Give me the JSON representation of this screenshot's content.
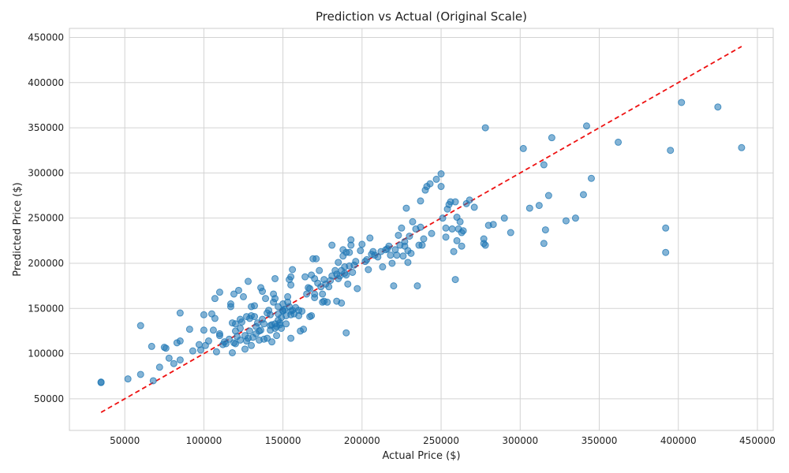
{
  "chart_data": {
    "type": "scatter",
    "title": "Prediction vs Actual (Original Scale)",
    "xlabel": "Actual Price ($)",
    "ylabel": "Predicted Price ($)",
    "xlim": [
      15000,
      460000
    ],
    "ylim": [
      15000,
      460000
    ],
    "xticks": [
      50000,
      100000,
      150000,
      200000,
      250000,
      300000,
      350000,
      400000,
      450000
    ],
    "yticks": [
      50000,
      100000,
      150000,
      200000,
      250000,
      300000,
      350000,
      400000,
      450000
    ],
    "grid": true,
    "point_color": "#1f77b4",
    "reference_line": {
      "x": [
        35000,
        440000
      ],
      "y": [
        35000,
        440000
      ],
      "color": "#ee1111",
      "style": "dashed"
    },
    "points": [
      [
        35000,
        68000
      ],
      [
        35000,
        68500
      ],
      [
        52000,
        72000
      ],
      [
        60000,
        77000
      ],
      [
        60000,
        131000
      ],
      [
        67000,
        108000
      ],
      [
        68000,
        70000
      ],
      [
        72000,
        85000
      ],
      [
        75000,
        107000
      ],
      [
        76000,
        106000
      ],
      [
        78000,
        95000
      ],
      [
        81000,
        89000
      ],
      [
        83000,
        112000
      ],
      [
        85000,
        145000
      ],
      [
        85000,
        114000
      ],
      [
        85000,
        93000
      ],
      [
        91000,
        127000
      ],
      [
        93000,
        103000
      ],
      [
        97000,
        110000
      ],
      [
        98000,
        104000
      ],
      [
        100000,
        143000
      ],
      [
        100000,
        126000
      ],
      [
        101000,
        109000
      ],
      [
        103000,
        114000
      ],
      [
        105000,
        144000
      ],
      [
        106000,
        126000
      ],
      [
        107000,
        161000
      ],
      [
        107000,
        139000
      ],
      [
        108000,
        102000
      ],
      [
        110000,
        168000
      ],
      [
        110000,
        120000
      ],
      [
        110000,
        122000
      ],
      [
        112000,
        110000
      ],
      [
        113000,
        113000
      ],
      [
        114000,
        111000
      ],
      [
        116000,
        116000
      ],
      [
        117000,
        152000
      ],
      [
        117000,
        155000
      ],
      [
        118000,
        134000
      ],
      [
        118000,
        101000
      ],
      [
        119000,
        166000
      ],
      [
        119000,
        112000
      ],
      [
        120000,
        111000
      ],
      [
        120000,
        125000
      ],
      [
        120000,
        133000
      ],
      [
        121000,
        119000
      ],
      [
        122000,
        170000
      ],
      [
        123000,
        115000
      ],
      [
        123000,
        128000
      ],
      [
        123000,
        138000
      ],
      [
        124000,
        135000
      ],
      [
        125000,
        163000
      ],
      [
        126000,
        105000
      ],
      [
        126000,
        120000
      ],
      [
        127000,
        114000
      ],
      [
        127000,
        141000
      ],
      [
        128000,
        180000
      ],
      [
        128000,
        117000
      ],
      [
        129000,
        125000
      ],
      [
        129000,
        139000
      ],
      [
        130000,
        142000
      ],
      [
        130000,
        152000
      ],
      [
        130000,
        109000
      ],
      [
        131000,
        118000
      ],
      [
        132000,
        153000
      ],
      [
        132000,
        141000
      ],
      [
        133000,
        130000
      ],
      [
        133000,
        122000
      ],
      [
        134000,
        134000
      ],
      [
        135000,
        115000
      ],
      [
        135000,
        125000
      ],
      [
        136000,
        173000
      ],
      [
        136000,
        126000
      ],
      [
        137000,
        138000
      ],
      [
        137000,
        169000
      ],
      [
        138000,
        133000
      ],
      [
        138000,
        116000
      ],
      [
        139000,
        161000
      ],
      [
        140000,
        117000
      ],
      [
        140000,
        145000
      ],
      [
        141000,
        148000
      ],
      [
        142000,
        131000
      ],
      [
        142000,
        126000
      ],
      [
        142000,
        143000
      ],
      [
        143000,
        113000
      ],
      [
        143000,
        132000
      ],
      [
        144000,
        157000
      ],
      [
        144000,
        166000
      ],
      [
        145000,
        183000
      ],
      [
        145000,
        161000
      ],
      [
        145000,
        133000
      ],
      [
        145000,
        128000
      ],
      [
        146000,
        120000
      ],
      [
        146000,
        130000
      ],
      [
        147000,
        152000
      ],
      [
        147000,
        144000
      ],
      [
        147000,
        137000
      ],
      [
        148000,
        132000
      ],
      [
        148000,
        134000
      ],
      [
        149000,
        128000
      ],
      [
        149000,
        140000
      ],
      [
        150000,
        148000
      ],
      [
        150000,
        155000
      ],
      [
        150000,
        147000
      ],
      [
        151000,
        149000
      ],
      [
        152000,
        133000
      ],
      [
        152000,
        142000
      ],
      [
        153000,
        163000
      ],
      [
        153000,
        157000
      ],
      [
        154000,
        182000
      ],
      [
        154000,
        152000
      ],
      [
        155000,
        185000
      ],
      [
        155000,
        176000
      ],
      [
        155000,
        143000
      ],
      [
        155000,
        147000
      ],
      [
        155000,
        117000
      ],
      [
        156000,
        193000
      ],
      [
        156000,
        148000
      ],
      [
        157000,
        144000
      ],
      [
        158000,
        151000
      ],
      [
        160000,
        148000
      ],
      [
        160000,
        142000
      ],
      [
        161000,
        125000
      ],
      [
        162000,
        147000
      ],
      [
        163000,
        127000
      ],
      [
        164000,
        185000
      ],
      [
        165000,
        166000
      ],
      [
        166000,
        173000
      ],
      [
        167000,
        172000
      ],
      [
        167000,
        141000
      ],
      [
        168000,
        142000
      ],
      [
        168000,
        187000
      ],
      [
        169000,
        205000
      ],
      [
        170000,
        162000
      ],
      [
        170000,
        166000
      ],
      [
        170000,
        183000
      ],
      [
        171000,
        205000
      ],
      [
        172000,
        178000
      ],
      [
        173000,
        192000
      ],
      [
        174000,
        174000
      ],
      [
        175000,
        157000
      ],
      [
        175000,
        166000
      ],
      [
        176000,
        182000
      ],
      [
        176000,
        158000
      ],
      [
        177000,
        177000
      ],
      [
        178000,
        157000
      ],
      [
        179000,
        174000
      ],
      [
        180000,
        181000
      ],
      [
        181000,
        186000
      ],
      [
        181000,
        220000
      ],
      [
        183000,
        192000
      ],
      [
        184000,
        158000
      ],
      [
        184000,
        188000
      ],
      [
        185000,
        183000
      ],
      [
        185000,
        201000
      ],
      [
        186000,
        186000
      ],
      [
        187000,
        192000
      ],
      [
        187000,
        156000
      ],
      [
        188000,
        215000
      ],
      [
        188000,
        208000
      ],
      [
        189000,
        196000
      ],
      [
        189000,
        189000
      ],
      [
        190000,
        187000
      ],
      [
        190000,
        123000
      ],
      [
        190000,
        212000
      ],
      [
        191000,
        177000
      ],
      [
        192000,
        212000
      ],
      [
        192000,
        197000
      ],
      [
        193000,
        220000
      ],
      [
        193000,
        226000
      ],
      [
        194000,
        190000
      ],
      [
        195000,
        198000
      ],
      [
        196000,
        202000
      ],
      [
        197000,
        172000
      ],
      [
        199000,
        214000
      ],
      [
        200000,
        221000
      ],
      [
        202000,
        202000
      ],
      [
        203000,
        204000
      ],
      [
        204000,
        193000
      ],
      [
        205000,
        228000
      ],
      [
        206000,
        210000
      ],
      [
        207000,
        213000
      ],
      [
        208000,
        209000
      ],
      [
        210000,
        207000
      ],
      [
        212000,
        213000
      ],
      [
        213000,
        196000
      ],
      [
        215000,
        215000
      ],
      [
        216000,
        216000
      ],
      [
        217000,
        219000
      ],
      [
        218000,
        209000
      ],
      [
        219000,
        200000
      ],
      [
        220000,
        175000
      ],
      [
        221000,
        215000
      ],
      [
        222000,
        209000
      ],
      [
        223000,
        231000
      ],
      [
        224000,
        220000
      ],
      [
        225000,
        239000
      ],
      [
        226000,
        208000
      ],
      [
        227000,
        224000
      ],
      [
        227000,
        219000
      ],
      [
        228000,
        261000
      ],
      [
        229000,
        214000
      ],
      [
        229000,
        201000
      ],
      [
        230000,
        230000
      ],
      [
        231000,
        211000
      ],
      [
        232000,
        246000
      ],
      [
        234000,
        238000
      ],
      [
        235000,
        175000
      ],
      [
        236000,
        220000
      ],
      [
        237000,
        240000
      ],
      [
        237000,
        269000
      ],
      [
        238000,
        220000
      ],
      [
        239000,
        227000
      ],
      [
        240000,
        281000
      ],
      [
        241000,
        285000
      ],
      [
        243000,
        288000
      ],
      [
        244000,
        233000
      ],
      [
        247000,
        293000
      ],
      [
        250000,
        299000
      ],
      [
        250000,
        285000
      ],
      [
        251000,
        250000
      ],
      [
        253000,
        239000
      ],
      [
        253000,
        229000
      ],
      [
        254000,
        260000
      ],
      [
        255000,
        265000
      ],
      [
        256000,
        268000
      ],
      [
        257000,
        238000
      ],
      [
        258000,
        213000
      ],
      [
        259000,
        182000
      ],
      [
        259000,
        268000
      ],
      [
        260000,
        251000
      ],
      [
        260000,
        225000
      ],
      [
        261000,
        238000
      ],
      [
        262000,
        246000
      ],
      [
        263000,
        219000
      ],
      [
        263000,
        234000
      ],
      [
        264000,
        236000
      ],
      [
        266000,
        266000
      ],
      [
        268000,
        270000
      ],
      [
        271000,
        262000
      ],
      [
        277000,
        222000
      ],
      [
        277000,
        227000
      ],
      [
        278000,
        350000
      ],
      [
        278000,
        220000
      ],
      [
        280000,
        242000
      ],
      [
        283000,
        243000
      ],
      [
        290000,
        250000
      ],
      [
        294000,
        234000
      ],
      [
        302000,
        327000
      ],
      [
        306000,
        261000
      ],
      [
        312000,
        264000
      ],
      [
        315000,
        222000
      ],
      [
        315000,
        309000
      ],
      [
        316000,
        237000
      ],
      [
        318000,
        275000
      ],
      [
        320000,
        339000
      ],
      [
        329000,
        247000
      ],
      [
        335000,
        250000
      ],
      [
        340000,
        276000
      ],
      [
        342000,
        352000
      ],
      [
        345000,
        294000
      ],
      [
        362000,
        334000
      ],
      [
        392000,
        239000
      ],
      [
        392000,
        212000
      ],
      [
        395000,
        325000
      ],
      [
        402000,
        378000
      ],
      [
        425000,
        373000
      ],
      [
        440000,
        328000
      ]
    ]
  }
}
